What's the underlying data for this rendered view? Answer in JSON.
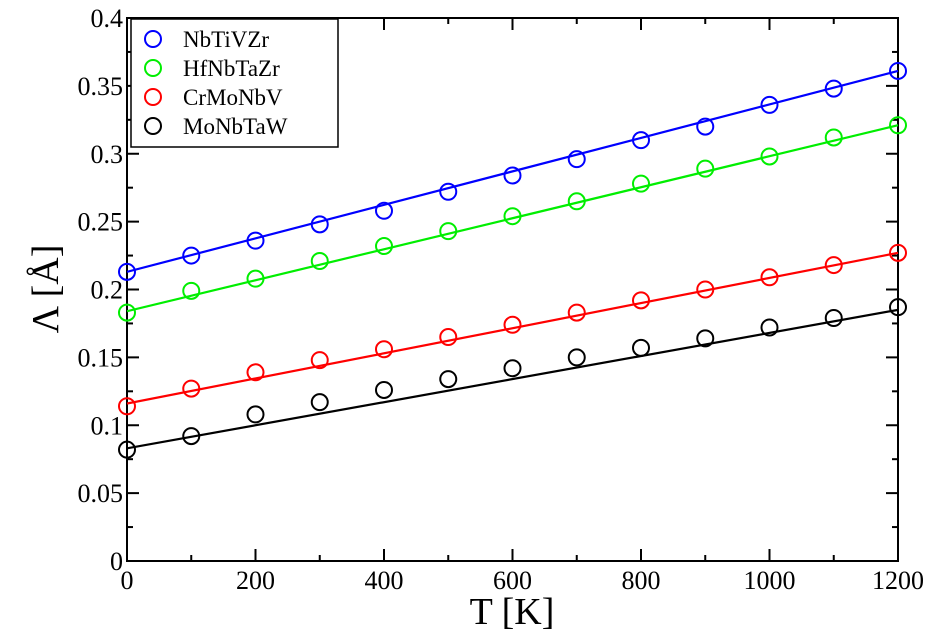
{
  "chart_data": {
    "type": "scatter",
    "xlabel": "T  [K]",
    "ylabel": "Λ [Å]",
    "xlim": [
      0,
      1200
    ],
    "ylim": [
      0,
      0.4
    ],
    "x_ticks": [
      0,
      200,
      400,
      600,
      800,
      1000,
      1200
    ],
    "x_tick_labels": [
      "0",
      "200",
      "400",
      "600",
      "800",
      "1000",
      "1200"
    ],
    "y_ticks": [
      0,
      0.05,
      0.1,
      0.15,
      0.2,
      0.25,
      0.3,
      0.35,
      0.4
    ],
    "y_tick_labels": [
      "0",
      "0.05",
      "0.1",
      "0.15",
      "0.2",
      "0.25",
      "0.3",
      "0.35",
      "0.4"
    ],
    "grid": false,
    "legend_position": "top-left",
    "markers": "open circles with linear fit lines",
    "x": [
      0,
      100,
      200,
      300,
      400,
      500,
      600,
      700,
      800,
      900,
      1000,
      1100,
      1200
    ],
    "series": [
      {
        "name": "NbTiVZr",
        "color": "#0000ff",
        "values": [
          0.213,
          0.225,
          0.236,
          0.248,
          0.258,
          0.272,
          0.284,
          0.296,
          0.31,
          0.32,
          0.336,
          0.348,
          0.361
        ],
        "fit": [
          0.213,
          0.361
        ]
      },
      {
        "name": "HfNbTaZr",
        "color": "#00ee00",
        "values": [
          0.183,
          0.199,
          0.208,
          0.221,
          0.232,
          0.243,
          0.254,
          0.265,
          0.278,
          0.289,
          0.298,
          0.312,
          0.321
        ],
        "fit": [
          0.184,
          0.321
        ]
      },
      {
        "name": "CrMoNbV",
        "color": "#ff0000",
        "values": [
          0.114,
          0.127,
          0.139,
          0.148,
          0.156,
          0.165,
          0.174,
          0.183,
          0.192,
          0.2,
          0.209,
          0.218,
          0.227
        ],
        "fit": [
          0.116,
          0.227
        ]
      },
      {
        "name": "MoNbTaW",
        "color": "#000000",
        "values": [
          0.082,
          0.092,
          0.108,
          0.117,
          0.126,
          0.134,
          0.142,
          0.15,
          0.157,
          0.164,
          0.172,
          0.179,
          0.187
        ],
        "fit": [
          0.083,
          0.185
        ]
      }
    ]
  }
}
